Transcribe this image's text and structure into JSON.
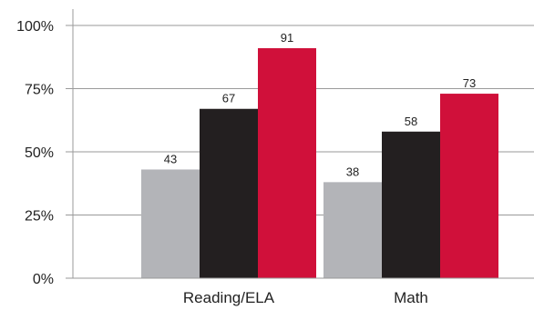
{
  "chart_data": {
    "type": "bar",
    "categories": [
      "Reading/ELA",
      "Math"
    ],
    "series": [
      {
        "values": [
          43,
          38
        ],
        "color": "#b3b4b8"
      },
      {
        "values": [
          67,
          58
        ],
        "color": "#231f20"
      },
      {
        "values": [
          91,
          73
        ],
        "color": "#d0103a"
      }
    ],
    "y_ticks": [
      "0%",
      "25%",
      "50%",
      "75%",
      "100%"
    ],
    "ylim": [
      0,
      100
    ],
    "grid": true,
    "legend": "none"
  }
}
